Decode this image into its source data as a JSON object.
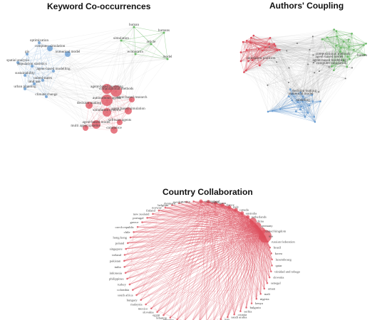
{
  "colors": {
    "blue": "#6c9fd3",
    "red": "#dd4d5b",
    "green": "#6dbb69",
    "edge": "#999999"
  },
  "panels": {
    "keyword": {
      "title": "Keyword Co-occurrences",
      "clusters": {
        "blue": [
          "optimization",
          "computer simulation",
          "gis",
          "numerical model",
          "population statistics",
          "spatial analysis",
          "agent-based modelling",
          "sustainability",
          "united states",
          "land use",
          "urban planning",
          "climate change"
        ],
        "green": [
          "human",
          "humans",
          "simulation",
          "article",
          "economics",
          "model"
        ],
        "red": [
          "agent-based modeling",
          "computational methods",
          "autonomous agents",
          "agent based research",
          "decision making",
          "simulation systems",
          "agent based simulation",
          "software agents",
          "agent-based model",
          "multi agent systems",
          "commerce"
        ]
      }
    },
    "authors": {
      "title": "Authors' Coupling",
      "labels": [
        "simulation platform",
        "computational methods",
        "agent-based model",
        "agent-based modelling",
        "computer simulation",
        "human",
        "numerical model",
        "decision making",
        "modeling"
      ]
    },
    "country": {
      "title": "Country Collaboration",
      "countries": [
        "usa",
        "united kingdom",
        "germany",
        "china",
        "netherlands",
        "australia",
        "canada",
        "italy",
        "france",
        "spain",
        "japan",
        "switzerland",
        "austria",
        "sweden",
        "denmark",
        "belgium",
        "norway",
        "finland",
        "new zealand",
        "portugal",
        "greece",
        "czech republic",
        "chile",
        "hong kong",
        "poland",
        "singapore",
        "ireland",
        "pakistan",
        "india",
        "indonesia",
        "philippines",
        "turkey",
        "colombia",
        "south africa",
        "hungary",
        "malaysia",
        "mexico",
        "slovakia",
        "egypt",
        "lebanon",
        "ethiopia",
        "estonia",
        "uruguay",
        "ghana",
        "ecuador",
        "jordan",
        "iran",
        "saudi arabia",
        "croatia",
        "serbia",
        "bulgaria",
        "kenya",
        "nigeria",
        "mali",
        "oman",
        "senegal",
        "slovenia",
        "trinidad and tobago",
        "qatar",
        "luxembourg",
        "korea",
        "brazil",
        "russian federation"
      ]
    }
  }
}
